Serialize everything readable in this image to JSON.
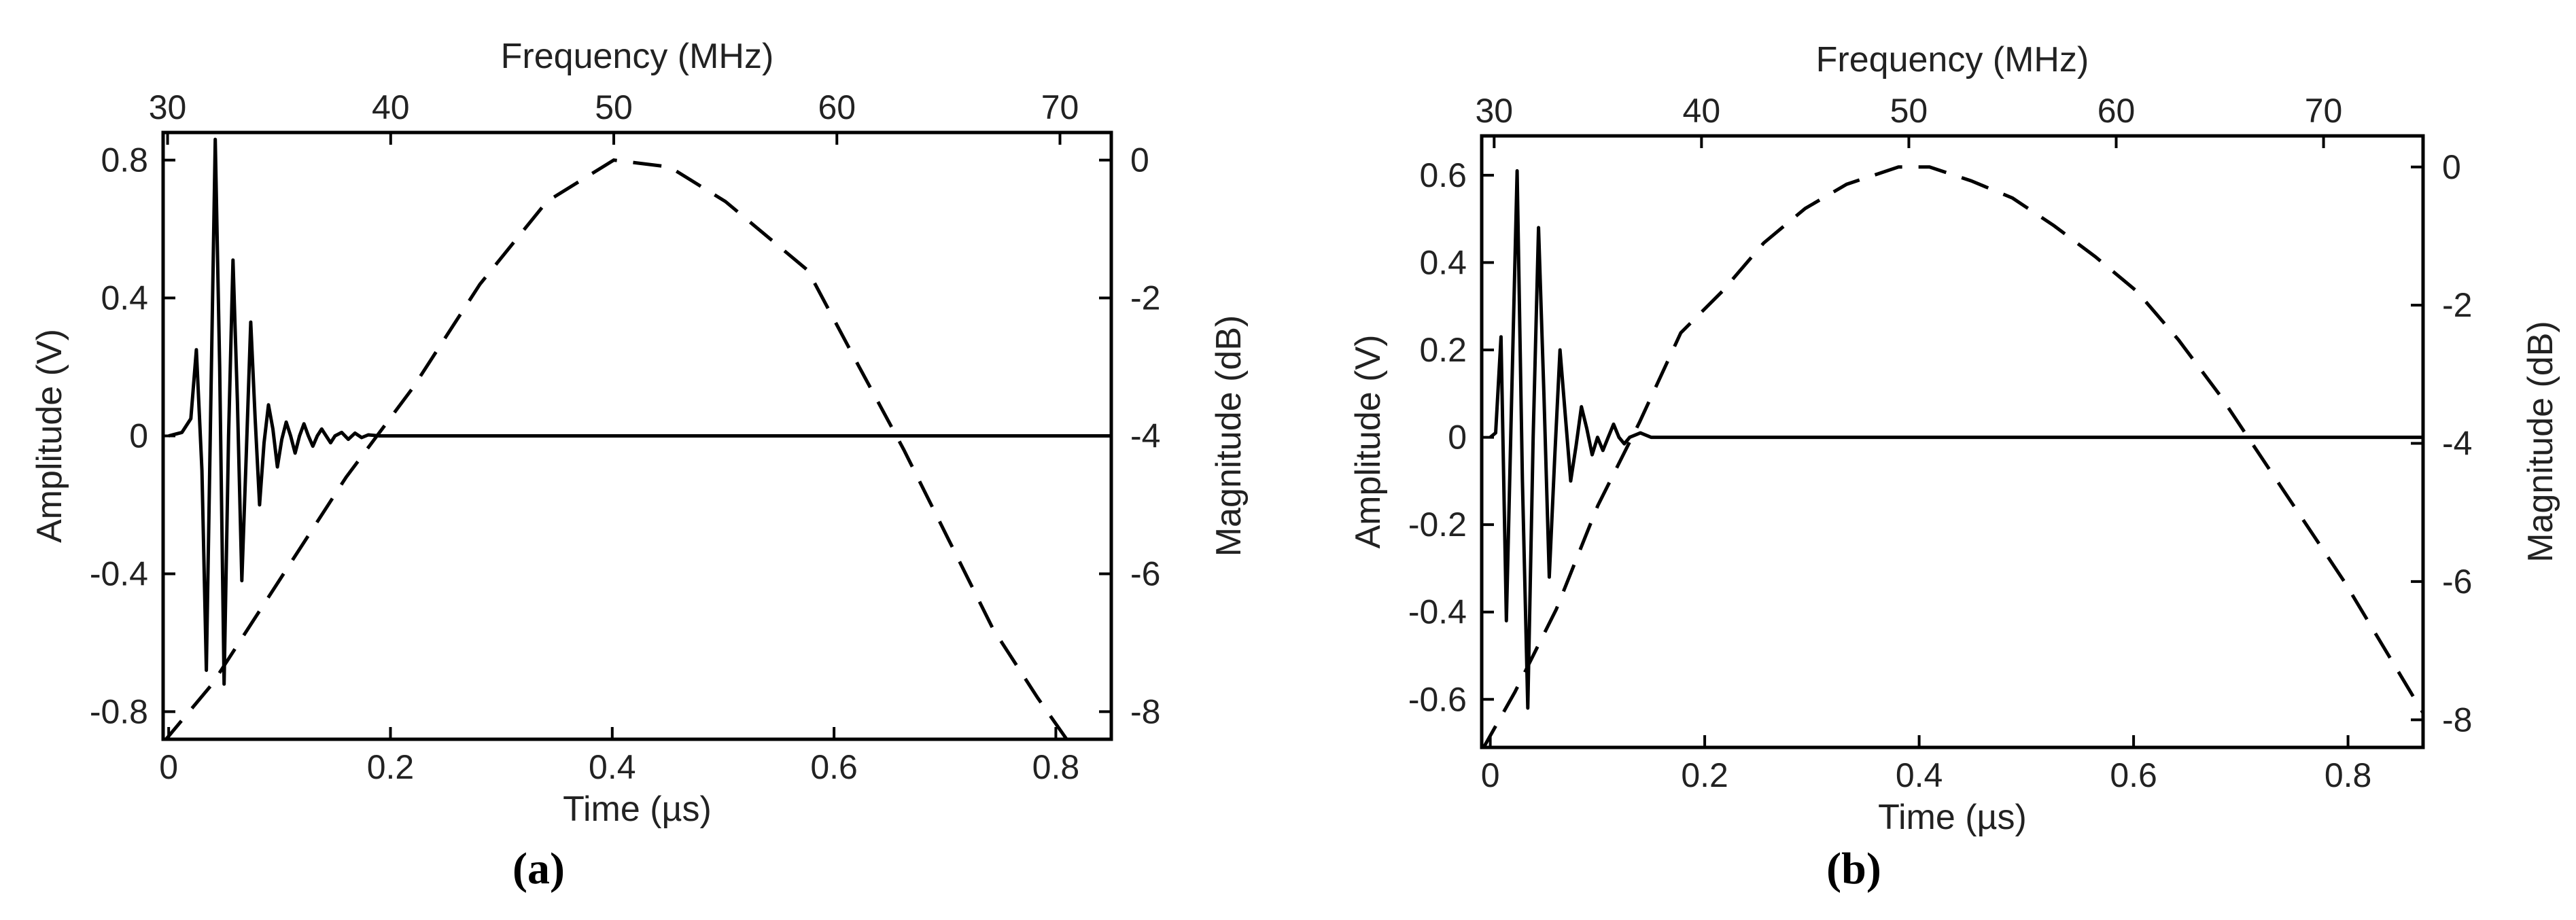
{
  "chart_data": [
    {
      "type": "line",
      "panel_label": "(a)",
      "xlabel": "Time (µs)",
      "ylabel": "Amplitude (V)",
      "x2label": "Frequency (MHz)",
      "y2label": "Magnitude (dB)",
      "xlim": [
        -0.005,
        0.85
      ],
      "ylim": [
        -0.88,
        0.88
      ],
      "x2lim": [
        29.8,
        72.3
      ],
      "y2lim": [
        -8.4,
        0.4
      ],
      "xticks": [
        0,
        0.2,
        0.4,
        0.6,
        0.8
      ],
      "yticks": [
        -0.8,
        -0.4,
        0,
        0.4,
        0.8
      ],
      "x2ticks": [
        30,
        40,
        50,
        60,
        70
      ],
      "y2ticks": [
        -8,
        -6,
        -4,
        -2,
        0
      ],
      "grid": false,
      "series": [
        {
          "axes": "bottom-left",
          "style": "solid",
          "x": [
            0,
            0.012,
            0.02,
            0.025,
            0.03,
            0.034,
            0.038,
            0.042,
            0.046,
            0.05,
            0.054,
            0.058,
            0.062,
            0.066,
            0.07,
            0.074,
            0.078,
            0.082,
            0.086,
            0.09,
            0.094,
            0.098,
            0.102,
            0.106,
            0.11,
            0.114,
            0.118,
            0.122,
            0.126,
            0.13,
            0.134,
            0.138,
            0.142,
            0.146,
            0.15,
            0.156,
            0.162,
            0.168,
            0.174,
            0.18,
            0.19,
            0.2,
            0.22,
            0.25,
            0.3,
            0.85
          ],
          "y": [
            0.0,
            0.01,
            0.05,
            0.25,
            -0.1,
            -0.68,
            0.1,
            0.86,
            0.2,
            -0.72,
            0.0,
            0.51,
            0.1,
            -0.42,
            -0.05,
            0.33,
            0.05,
            -0.2,
            -0.02,
            0.09,
            0.02,
            -0.09,
            -0.01,
            0.04,
            0.0,
            -0.05,
            0.0,
            0.035,
            0.0,
            -0.03,
            0.0,
            0.02,
            0.0,
            -0.02,
            0.0,
            0.01,
            -0.01,
            0.008,
            -0.005,
            0.003,
            0.0,
            0.0,
            0.0,
            0.0,
            0.0,
            0.0
          ]
        },
        {
          "axes": "top-right",
          "style": "dashed",
          "x": [
            29.8,
            32,
            35,
            38,
            41,
            44,
            47,
            50,
            52.5,
            55,
            58.7,
            61,
            63,
            65,
            67,
            69,
            70.3
          ],
          "y": [
            -8.45,
            -7.6,
            -6.1,
            -4.6,
            -3.3,
            -1.8,
            -0.6,
            0.0,
            -0.1,
            -0.6,
            -1.6,
            -3.0,
            -4.2,
            -5.5,
            -6.8,
            -7.8,
            -8.4
          ]
        }
      ]
    },
    {
      "type": "line",
      "panel_label": "(b)",
      "xlabel": "Time (µs)",
      "ylabel": "Amplitude (V)",
      "x2label": "Frequency (MHz)",
      "y2label": "Magnitude (dB)",
      "xlim": [
        -0.008,
        0.87
      ],
      "ylim": [
        -0.71,
        0.69
      ],
      "x2lim": [
        29.4,
        74.8
      ],
      "y2lim": [
        -8.4,
        0.45
      ],
      "xticks": [
        0,
        0.2,
        0.4,
        0.6,
        0.8
      ],
      "yticks": [
        -0.6,
        -0.4,
        -0.2,
        0,
        0.2,
        0.4,
        0.6
      ],
      "x2ticks": [
        30,
        40,
        50,
        60,
        70
      ],
      "y2ticks": [
        -8,
        -6,
        -4,
        -2,
        0
      ],
      "grid": false,
      "series": [
        {
          "axes": "bottom-left",
          "style": "solid",
          "x": [
            0,
            0.005,
            0.01,
            0.015,
            0.02,
            0.025,
            0.03,
            0.035,
            0.04,
            0.045,
            0.05,
            0.055,
            0.06,
            0.065,
            0.07,
            0.075,
            0.08,
            0.085,
            0.09,
            0.095,
            0.1,
            0.105,
            0.11,
            0.115,
            0.12,
            0.125,
            0.13,
            0.14,
            0.15,
            0.16,
            0.2,
            0.87
          ],
          "y": [
            0.0,
            0.01,
            0.23,
            -0.42,
            0.1,
            0.61,
            -0.1,
            -0.62,
            0.0,
            0.48,
            0.1,
            -0.32,
            -0.05,
            0.2,
            0.05,
            -0.1,
            -0.02,
            0.07,
            0.02,
            -0.04,
            0.0,
            -0.03,
            0.0,
            0.03,
            0.0,
            -0.015,
            0.0,
            0.01,
            0.0,
            0.0,
            0.0,
            0.0
          ]
        },
        {
          "axes": "top-right",
          "style": "dashed",
          "x": [
            29.4,
            31,
            33,
            35,
            37,
            39,
            41,
            43,
            45,
            47,
            49.5,
            51,
            53,
            55,
            57,
            59,
            61,
            63,
            65,
            67,
            69,
            71,
            73,
            74.8
          ],
          "y": [
            -8.45,
            -7.6,
            -6.4,
            -4.9,
            -3.7,
            -2.4,
            -1.8,
            -1.1,
            -0.6,
            -0.25,
            0.0,
            0.0,
            -0.2,
            -0.45,
            -0.85,
            -1.3,
            -1.8,
            -2.5,
            -3.3,
            -4.2,
            -5.1,
            -6.0,
            -7.0,
            -7.9
          ]
        }
      ]
    }
  ]
}
